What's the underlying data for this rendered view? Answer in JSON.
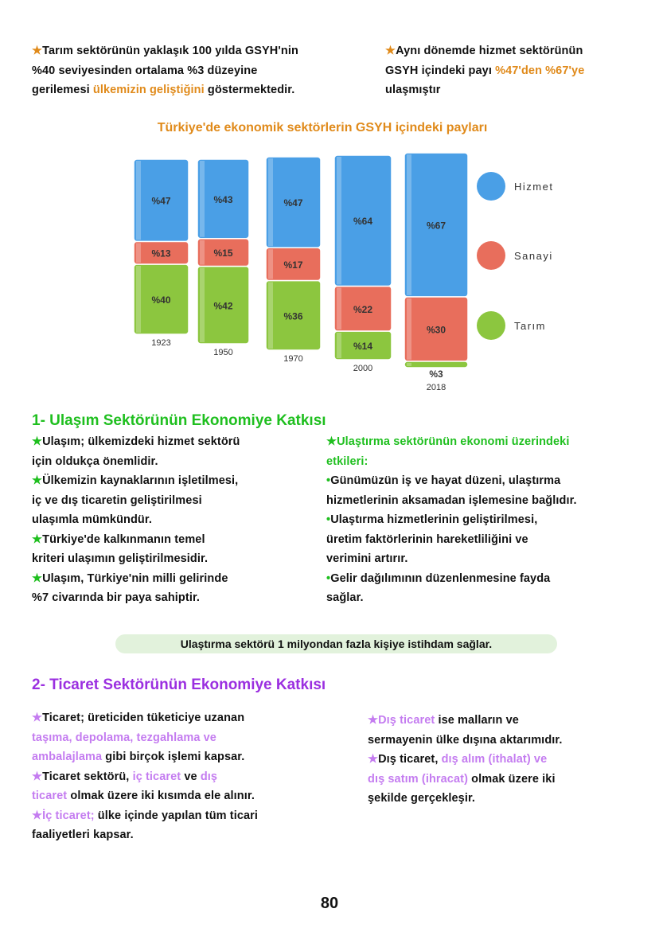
{
  "colors": {
    "orange": "#e08a1a",
    "green": "#1fbf1f",
    "purple": "#9b2fe0",
    "lilac": "#c47cf0",
    "hizmet": "#4a9fe6",
    "sanayi": "#e86e5c",
    "tarim": "#8cc63f"
  },
  "intro": {
    "left": [
      [
        {
          "t": "★",
          "c": "orange"
        },
        {
          "t": "Tarım sektörünün yaklaşık 100 yılda GSYH'nin"
        }
      ],
      [
        {
          "t": "%40 seviyesinden ortalama %3 düzeyine"
        }
      ],
      [
        {
          "t": "gerilemesi "
        },
        {
          "t": "ülkemizin geliştiğini",
          "c": "orange"
        },
        {
          "t": " göstermektedir."
        }
      ]
    ],
    "right": [
      [
        {
          "t": "★",
          "c": "orange"
        },
        {
          "t": "Aynı dönemde hizmet sektörünün"
        }
      ],
      [
        {
          "t": "GSYH içindeki payı "
        },
        {
          "t": "%47'den %67'ye",
          "c": "orange"
        }
      ],
      [
        {
          "t": "ulaşmıştır"
        }
      ]
    ]
  },
  "chart_data": {
    "type": "bar",
    "stacked": true,
    "title": "Türkiye'de ekonomik sektörlerin GSYH içindeki payları",
    "categories": [
      "1923",
      "1950",
      "1970",
      "2000",
      "2018"
    ],
    "series": [
      {
        "name": "Tarım",
        "values": [
          40,
          42,
          36,
          14,
          3
        ]
      },
      {
        "name": "Sanayi",
        "values": [
          13,
          15,
          17,
          22,
          30
        ]
      },
      {
        "name": "Hizmet",
        "values": [
          47,
          43,
          47,
          64,
          67
        ]
      }
    ],
    "data_labels": [
      [
        "%40",
        "%42",
        "%36",
        "%14",
        "%3"
      ],
      [
        "%13",
        "%15",
        "%17",
        "%22",
        "%30"
      ],
      [
        "%47",
        "%43",
        "%47",
        "%64",
        "%67"
      ]
    ],
    "legend": [
      "Hizmet",
      "Sanayi",
      "Tarım"
    ],
    "legend_position": "right"
  },
  "section1": {
    "title": "1- Ulaşım Sektörünün Ekonomiye Katkısı",
    "left": [
      [
        {
          "t": "★",
          "c": "green"
        },
        {
          "t": "Ulaşım; ülkemizdeki hizmet sektörü"
        }
      ],
      [
        {
          "t": "için oldukça önemlidir."
        }
      ],
      [
        {
          "t": "★",
          "c": "green"
        },
        {
          "t": "Ülkemizin kaynaklarının işletilmesi,"
        }
      ],
      [
        {
          "t": "iç ve dış ticaretin geliştirilmesi"
        }
      ],
      [
        {
          "t": "ulaşımla mümkündür."
        }
      ],
      [
        {
          "t": "★",
          "c": "green"
        },
        {
          "t": "Türkiye'de kalkınmanın temel"
        }
      ],
      [
        {
          "t": "kriteri ulaşımın geliştirilmesidir."
        }
      ],
      [
        {
          "t": "★",
          "c": "green"
        },
        {
          "t": "Ulaşım, Türkiye'nin milli gelirinde"
        }
      ],
      [
        {
          "t": "%7 civarında bir paya sahiptir."
        }
      ]
    ],
    "right": [
      [
        {
          "t": "★Ulaştırma sektörünün ekonomi üzerindeki",
          "c": "green"
        }
      ],
      [
        {
          "t": "etkileri:",
          "c": "green"
        }
      ],
      [
        {
          "t": "•",
          "c": "green"
        },
        {
          "t": "Günümüzün iş ve hayat düzeni, ulaştırma"
        }
      ],
      [
        {
          "t": "hizmetlerinin aksamadan işlemesine bağlıdır."
        }
      ],
      [
        {
          "t": "•",
          "c": "green"
        },
        {
          "t": "Ulaştırma hizmetlerinin geliştirilmesi,"
        }
      ],
      [
        {
          "t": "üretim faktörlerinin hareketliliğini ve"
        }
      ],
      [
        {
          "t": "verimini artırır."
        }
      ],
      [
        {
          "t": "•",
          "c": "green"
        },
        {
          "t": "Gelir dağılımının düzenlenmesine fayda"
        }
      ],
      [
        {
          "t": "sağlar."
        }
      ]
    ],
    "note": "Ulaştırma sektörü 1 milyondan fazla kişiye istihdam sağlar."
  },
  "section2": {
    "title": "2- Ticaret Sektörünün Ekonomiye Katkısı",
    "left": [
      [
        {
          "t": "★",
          "c": "lilac"
        },
        {
          "t": "Ticaret; üreticiden tüketiciye uzanan"
        }
      ],
      [
        {
          "t": "taşıma, depolama, tezgahlama ve",
          "c": "lilac"
        }
      ],
      [
        {
          "t": "ambalajlama",
          "c": "lilac"
        },
        {
          "t": " gibi birçok işlemi kapsar."
        }
      ],
      [
        {
          "t": "★",
          "c": "lilac"
        },
        {
          "t": "Ticaret sektörü, "
        },
        {
          "t": "iç ticaret",
          "c": "lilac"
        },
        {
          "t": " ve "
        },
        {
          "t": "dış",
          "c": "lilac"
        }
      ],
      [
        {
          "t": "ticaret",
          "c": "lilac"
        },
        {
          "t": " olmak üzere iki kısımda ele alınır."
        }
      ],
      [
        {
          "t": "★İç ticaret;",
          "c": "lilac"
        },
        {
          "t": " ülke içinde yapılan tüm ticari"
        }
      ],
      [
        {
          "t": "faaliyetleri kapsar."
        }
      ]
    ],
    "right": [
      [
        {
          "t": "★Dış ticaret",
          "c": "lilac"
        },
        {
          "t": " ise malların ve"
        }
      ],
      [
        {
          "t": "sermayenin ülke dışına aktarımıdır."
        }
      ],
      [
        {
          "t": "★",
          "c": "lilac"
        },
        {
          "t": "Dış ticaret, "
        },
        {
          "t": "dış alım (ithalat) ve",
          "c": "lilac"
        }
      ],
      [
        {
          "t": "dış satım (ihracat)",
          "c": "lilac"
        },
        {
          "t": " olmak üzere iki"
        }
      ],
      [
        {
          "t": "şekilde gerçekleşir."
        }
      ]
    ]
  },
  "page_number": "80"
}
